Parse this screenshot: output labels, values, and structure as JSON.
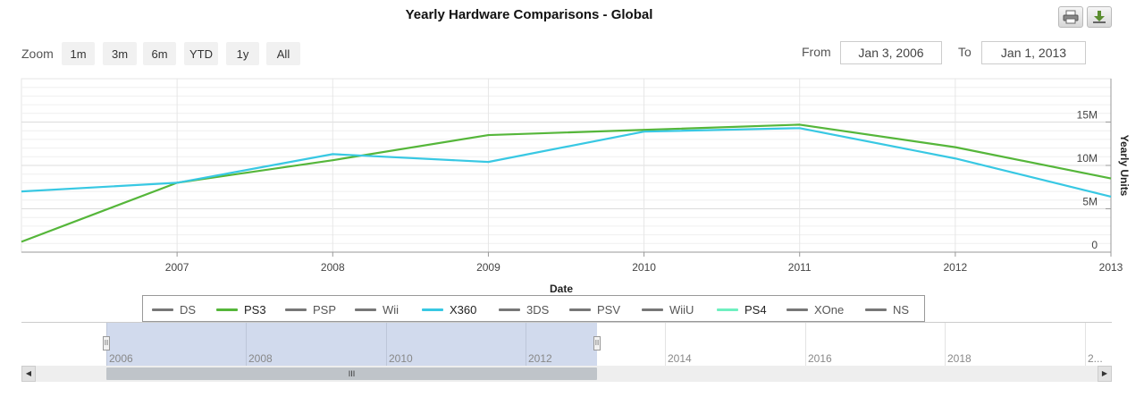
{
  "title": "Yearly Hardware Comparisons - Global",
  "toolbar": {
    "print_icon": "printer-icon",
    "download_icon": "download-icon"
  },
  "zoom": {
    "label": "Zoom",
    "buttons": [
      "1m",
      "3m",
      "6m",
      "YTD",
      "1y",
      "All"
    ]
  },
  "range": {
    "from_label": "From",
    "from_value": "Jan 3, 2006",
    "to_label": "To",
    "to_value": "Jan 1, 2013"
  },
  "chart_data": {
    "type": "line",
    "title": "Yearly Hardware Comparisons - Global",
    "xlabel": "Date",
    "ylabel": "Yearly Units",
    "x_ticks": [
      "2007",
      "2008",
      "2009",
      "2010",
      "2011",
      "2012",
      "2013"
    ],
    "y_ticks": [
      "0",
      "5M",
      "10M",
      "15M"
    ],
    "xlim": [
      2006.0,
      2013.0
    ],
    "ylim": [
      0,
      20
    ],
    "x": [
      2006.0,
      2007.0,
      2008.0,
      2009.0,
      2010.0,
      2011.0,
      2012.0,
      2013.0
    ],
    "series": [
      {
        "name": "PS3",
        "color": "#55b63a",
        "values": [
          1.2,
          8.0,
          10.6,
          13.5,
          14.1,
          14.7,
          12.1,
          8.5
        ]
      },
      {
        "name": "X360",
        "color": "#38c8e3",
        "values": [
          7.0,
          8.0,
          11.3,
          10.4,
          13.9,
          14.3,
          10.8,
          6.4
        ]
      }
    ],
    "grid": true,
    "legend_position": "bottom"
  },
  "legend": [
    {
      "name": "DS",
      "color": "#777777",
      "active": false
    },
    {
      "name": "PS3",
      "color": "#55b63a",
      "active": true
    },
    {
      "name": "PSP",
      "color": "#777777",
      "active": false
    },
    {
      "name": "Wii",
      "color": "#777777",
      "active": false
    },
    {
      "name": "X360",
      "color": "#38c8e3",
      "active": true
    },
    {
      "name": "3DS",
      "color": "#777777",
      "active": false
    },
    {
      "name": "PSV",
      "color": "#777777",
      "active": false
    },
    {
      "name": "WiiU",
      "color": "#777777",
      "active": false
    },
    {
      "name": "PS4",
      "color": "#6ff0c0",
      "active": true
    },
    {
      "name": "XOne",
      "color": "#777777",
      "active": false
    },
    {
      "name": "NS",
      "color": "#777777",
      "active": false
    }
  ],
  "navigator": {
    "labels": [
      "2006",
      "2008",
      "2010",
      "2012",
      "2014",
      "2016",
      "2018",
      "2..."
    ],
    "handle_glyph": "II",
    "scroll_glyph": "III",
    "scroll_left": "◀",
    "scroll_right": "▶"
  }
}
